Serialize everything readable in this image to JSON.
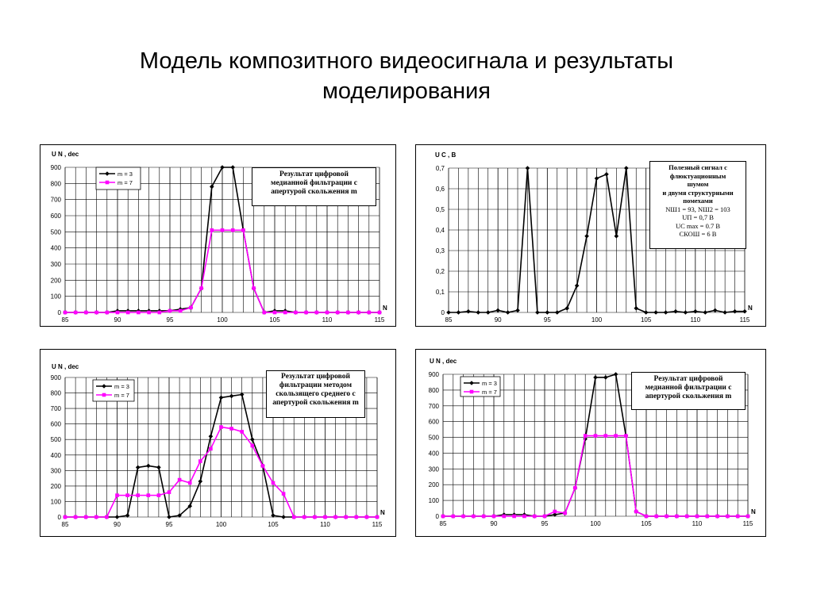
{
  "slide": {
    "title_line1": "Модель композитного видеосигнала и результаты",
    "title_line2": "моделирования"
  },
  "colors": {
    "series_black": "#000000",
    "series_magenta": "#ff00ff",
    "grid": "#000000"
  },
  "chart_data": [
    {
      "type": "line",
      "ylabel": "U N , dec",
      "xlabel": "N",
      "xlim": [
        85,
        115
      ],
      "xticks": [
        85,
        90,
        95,
        100,
        105,
        110,
        115
      ],
      "ylim": [
        0,
        900
      ],
      "yticks": [
        0,
        100,
        200,
        300,
        400,
        500,
        600,
        700,
        800,
        900
      ],
      "grid": true,
      "legend": "top-left",
      "annotation": [
        "Результат  цифровой",
        "медианной фильтрации с",
        "апертурой скольжения m"
      ],
      "series": [
        {
          "name": "m = 3",
          "color": "#000000",
          "marker": "diamond",
          "x": [
            85,
            86,
            87,
            88,
            89,
            90,
            91,
            92,
            93,
            94,
            95,
            96,
            97,
            98,
            99,
            100,
            101,
            102,
            103,
            104,
            105,
            106,
            107,
            108,
            109,
            110,
            111,
            112,
            113,
            114,
            115
          ],
          "y": [
            0,
            0,
            0,
            0,
            0,
            10,
            10,
            10,
            10,
            10,
            10,
            20,
            30,
            150,
            780,
            900,
            900,
            510,
            150,
            0,
            10,
            10,
            0,
            0,
            0,
            0,
            0,
            0,
            0,
            0,
            0
          ]
        },
        {
          "name": "m  =  7",
          "color": "#ff00ff",
          "marker": "square",
          "x": [
            85,
            86,
            87,
            88,
            89,
            90,
            91,
            92,
            93,
            94,
            95,
            96,
            97,
            98,
            99,
            100,
            101,
            102,
            103,
            104,
            105,
            106,
            107,
            108,
            109,
            110,
            111,
            112,
            113,
            114,
            115
          ],
          "y": [
            0,
            0,
            0,
            0,
            0,
            0,
            0,
            0,
            0,
            0,
            10,
            10,
            30,
            150,
            510,
            510,
            510,
            510,
            150,
            0,
            0,
            0,
            0,
            0,
            0,
            0,
            0,
            0,
            0,
            0,
            0
          ]
        }
      ]
    },
    {
      "type": "line",
      "ylabel": "U C , В",
      "xlabel": "N",
      "xlim": [
        85,
        115
      ],
      "xticks": [
        85,
        90,
        95,
        100,
        105,
        110,
        115
      ],
      "ylim": [
        0,
        0.7
      ],
      "yticks": [
        "0",
        "0,1",
        "0,2",
        "0,3",
        "0,4",
        "0,5",
        "0,6",
        "0,7"
      ],
      "grid": true,
      "annotation": [
        "Полезный сигнал с",
        "флюктуационным",
        "шумом",
        "и двумя структурными",
        "помехами",
        "NШ1 = 93, NШ2 =  103",
        "UП = 0,7 В",
        "UC max = 0.7 В",
        "СКОШ = 6 В"
      ],
      "series": [
        {
          "name": "",
          "color": "#000000",
          "marker": "diamond",
          "x": [
            85,
            86,
            87,
            88,
            89,
            90,
            91,
            92,
            93,
            94,
            95,
            96,
            97,
            98,
            99,
            100,
            101,
            102,
            103,
            104,
            105,
            106,
            107,
            108,
            109,
            110,
            111,
            112,
            113,
            114,
            115
          ],
          "y": [
            0,
            0,
            0.005,
            0,
            0,
            0.01,
            0,
            0.01,
            0.7,
            0,
            0,
            0,
            0.02,
            0.13,
            0.37,
            0.65,
            0.67,
            0.37,
            0.7,
            0.02,
            0,
            0,
            0,
            0.005,
            0,
            0.005,
            0,
            0.01,
            0,
            0.005,
            0.005
          ]
        }
      ]
    },
    {
      "type": "line",
      "ylabel": "U N , dec",
      "xlabel": "N",
      "xlim": [
        85,
        115
      ],
      "xticks": [
        85,
        90,
        95,
        100,
        105,
        110,
        115
      ],
      "ylim": [
        0,
        900
      ],
      "yticks": [
        0,
        100,
        200,
        300,
        400,
        500,
        600,
        700,
        800,
        900
      ],
      "grid": true,
      "legend": "top-left",
      "annotation": [
        "Результат  цифровой",
        "фильтрации методом",
        "скользящего среднего  с",
        "апертурой скольжения m"
      ],
      "series": [
        {
          "name": "m = 3",
          "color": "#000000",
          "marker": "diamond",
          "x": [
            85,
            86,
            87,
            88,
            89,
            90,
            91,
            92,
            93,
            94,
            95,
            96,
            97,
            98,
            99,
            100,
            101,
            102,
            103,
            104,
            105,
            106,
            107,
            108,
            109,
            110,
            111,
            112,
            113,
            114,
            115
          ],
          "y": [
            0,
            0,
            0,
            0,
            0,
            0,
            10,
            320,
            330,
            320,
            0,
            10,
            70,
            230,
            520,
            770,
            780,
            790,
            500,
            330,
            10,
            0,
            0,
            0,
            0,
            0,
            0,
            0,
            0,
            0,
            0
          ]
        },
        {
          "name": "m = 7",
          "color": "#ff00ff",
          "marker": "square",
          "x": [
            85,
            86,
            87,
            88,
            89,
            90,
            91,
            92,
            93,
            94,
            95,
            96,
            97,
            98,
            99,
            100,
            101,
            102,
            103,
            104,
            105,
            106,
            107,
            108,
            109,
            110,
            111,
            112,
            113,
            114,
            115
          ],
          "y": [
            0,
            0,
            0,
            0,
            0,
            140,
            140,
            140,
            140,
            140,
            160,
            240,
            220,
            360,
            440,
            580,
            570,
            550,
            460,
            330,
            220,
            150,
            0,
            0,
            0,
            0,
            0,
            0,
            0,
            0,
            0
          ]
        }
      ]
    },
    {
      "type": "line",
      "ylabel": "U N , dec",
      "xlabel": "N",
      "xlim": [
        85,
        115
      ],
      "xticks": [
        85,
        90,
        95,
        100,
        105,
        110,
        115
      ],
      "ylim": [
        0,
        900
      ],
      "yticks": [
        0,
        100,
        200,
        300,
        400,
        500,
        600,
        700,
        800,
        900
      ],
      "grid": true,
      "legend": "top-left",
      "annotation": [
        "Результат  цифровой",
        "медианной фильтрации с",
        "апертурой скольжения m"
      ],
      "series": [
        {
          "name": "m = 3",
          "color": "#000000",
          "marker": "diamond",
          "x": [
            85,
            86,
            87,
            88,
            89,
            90,
            91,
            92,
            93,
            94,
            95,
            96,
            97,
            98,
            99,
            100,
            101,
            102,
            103,
            104,
            105,
            106,
            107,
            108,
            109,
            110,
            111,
            112,
            113,
            114,
            115
          ],
          "y": [
            0,
            0,
            0,
            0,
            0,
            0,
            10,
            10,
            10,
            0,
            0,
            10,
            20,
            180,
            490,
            880,
            880,
            900,
            510,
            30,
            0,
            0,
            0,
            0,
            0,
            0,
            0,
            0,
            0,
            0,
            0
          ]
        },
        {
          "name": "m = 7",
          "color": "#ff00ff",
          "marker": "square",
          "x": [
            85,
            86,
            87,
            88,
            89,
            90,
            91,
            92,
            93,
            94,
            95,
            96,
            97,
            98,
            99,
            100,
            101,
            102,
            103,
            104,
            105,
            106,
            107,
            108,
            109,
            110,
            111,
            112,
            113,
            114,
            115
          ],
          "y": [
            0,
            0,
            0,
            0,
            0,
            0,
            0,
            0,
            0,
            0,
            0,
            30,
            20,
            180,
            510,
            510,
            510,
            510,
            510,
            30,
            0,
            0,
            0,
            0,
            0,
            0,
            0,
            0,
            0,
            0,
            0
          ]
        }
      ]
    }
  ]
}
